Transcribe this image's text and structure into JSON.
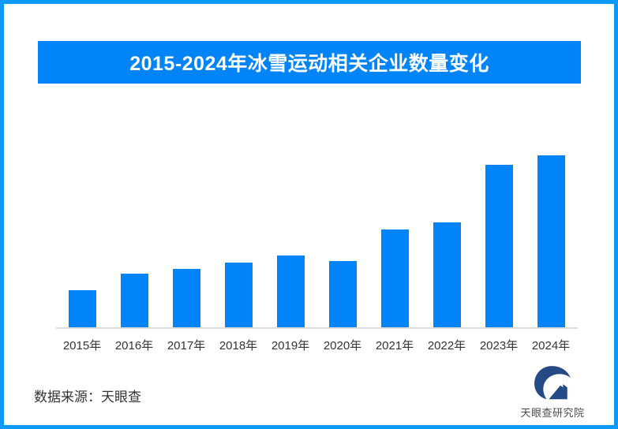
{
  "page": {
    "border_color": "#0b9af8",
    "background_color": "#ffffff"
  },
  "banner": {
    "title": "2015-2024年冰雪运动相关企业数量变化",
    "background_color": "#0084f8",
    "text_color": "#ffffff"
  },
  "chart_data": {
    "type": "bar",
    "title": "2015-2024年冰雪运动相关企业数量变化",
    "categories": [
      "2015年",
      "2016年",
      "2017年",
      "2018年",
      "2019年",
      "2020年",
      "2021年",
      "2022年",
      "2023年",
      "2024年"
    ],
    "values": [
      21.6,
      31.2,
      33.9,
      37.6,
      41.7,
      38.5,
      56.9,
      61.0,
      94.5,
      100
    ],
    "values_note": "no numeric y-axis or data labels shown; values are bar heights as percent of tallest (2024) bar",
    "bar_color": "#0084f8",
    "xlabel": "",
    "ylabel": "",
    "grid": false,
    "legend": false,
    "y_axis_visible": false,
    "baseline_color": "#dcdcdc",
    "tick_label_color": "#333333"
  },
  "footer": {
    "source_text": "数据来源：天眼查",
    "logo_text": "天眼查研究院",
    "logo_color": "#254a85"
  }
}
